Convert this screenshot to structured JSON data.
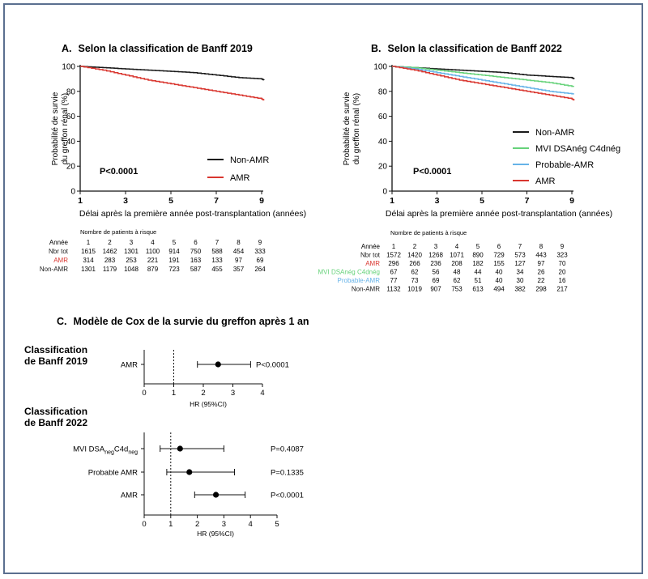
{
  "colors": {
    "black": "#1a1a1a",
    "red": "#d9362f",
    "green": "#66d27a",
    "blue": "#66b3e8",
    "frame": "#5b6f8f"
  },
  "chart_data": [
    {
      "type": "line",
      "panel": "A.",
      "title": "Selon la classification de Banff 2019",
      "ylabel": "Probabilité de survie du greffon rénal (%)",
      "ylabel_lines": [
        "Probabilité de survie",
        "du greffon rénal (%)"
      ],
      "xlabel": "Délai après la première année post-transplantation (années)",
      "xlim": [
        1,
        9
      ],
      "ylim": [
        0,
        100
      ],
      "xticks": [
        1,
        3,
        5,
        7,
        9
      ],
      "yticks": [
        0,
        20,
        40,
        60,
        80,
        100
      ],
      "pvalue": "P<0.0001",
      "legend_position": "bottom-right",
      "series": [
        {
          "name": "Non-AMR",
          "color": "#1a1a1a",
          "x": [
            1,
            2,
            3,
            4,
            5,
            6,
            7,
            8,
            9,
            9.1
          ],
          "y": [
            100,
            99,
            98,
            97,
            96,
            95,
            93,
            91,
            90,
            89
          ]
        },
        {
          "name": "AMR",
          "color": "#d9362f",
          "x": [
            1,
            2,
            3,
            4,
            5,
            6,
            7,
            8,
            9,
            9.1
          ],
          "y": [
            100,
            97,
            93,
            89,
            86,
            83,
            80,
            77,
            74,
            73
          ]
        }
      ],
      "risk_table": {
        "title": "Nombre de patients à risque",
        "header_label": "Année",
        "years": [
          "1",
          "2",
          "3",
          "4",
          "5",
          "6",
          "7",
          "8",
          "9"
        ],
        "rows": [
          {
            "label": "Nbr tot",
            "color": "#1a1a1a",
            "values": [
              "1615",
              "1462",
              "1301",
              "1100",
              "914",
              "750",
              "588",
              "454",
              "333"
            ]
          },
          {
            "label": "AMR",
            "color": "#d9362f",
            "values": [
              "314",
              "283",
              "253",
              "221",
              "191",
              "163",
              "133",
              "97",
              "69"
            ]
          },
          {
            "label": "Non-AMR",
            "color": "#1a1a1a",
            "values": [
              "1301",
              "1179",
              "1048",
              "879",
              "723",
              "587",
              "455",
              "357",
              "264"
            ]
          }
        ]
      }
    },
    {
      "type": "line",
      "panel": "B.",
      "title": "Selon la classification de Banff 2022",
      "ylabel": "Probabilité de survie du greffon rénal (%)",
      "ylabel_lines": [
        "Probabilité de survie",
        "du greffon rénal (%)"
      ],
      "xlabel": "Délai après la première année post-transplantation (années)",
      "xlim": [
        1,
        9
      ],
      "ylim": [
        0,
        100
      ],
      "xticks": [
        1,
        3,
        5,
        7,
        9
      ],
      "yticks": [
        0,
        20,
        40,
        60,
        80,
        100
      ],
      "pvalue": "P<0.0001",
      "legend_position": "right",
      "series": [
        {
          "name": "Non-AMR",
          "color": "#1a1a1a",
          "x": [
            1,
            2,
            3,
            4,
            5,
            6,
            7,
            8,
            9,
            9.1
          ],
          "y": [
            100,
            99,
            98,
            97,
            96,
            95,
            93,
            92,
            91,
            90
          ]
        },
        {
          "name": "MVI DSAnég C4dnég",
          "color": "#66d27a",
          "x": [
            1,
            2,
            3,
            4,
            5,
            6,
            7,
            8,
            9,
            9.1
          ],
          "y": [
            100,
            99,
            97,
            95,
            93,
            91,
            89,
            87,
            84,
            84
          ]
        },
        {
          "name": "Probable-AMR",
          "color": "#66b3e8",
          "x": [
            1,
            2,
            3,
            4,
            5,
            6,
            7,
            8,
            9,
            9.1
          ],
          "y": [
            100,
            98,
            95,
            92,
            89,
            86,
            83,
            80,
            78,
            78
          ]
        },
        {
          "name": "AMR",
          "color": "#d9362f",
          "x": [
            1,
            2,
            3,
            4,
            5,
            6,
            7,
            8,
            9,
            9.1
          ],
          "y": [
            100,
            97,
            93,
            89,
            86,
            83,
            80,
            77,
            74,
            73
          ]
        }
      ],
      "risk_table": {
        "title": "Nombre de patients à risque",
        "header_label": "Année",
        "years": [
          "1",
          "2",
          "3",
          "4",
          "5",
          "6",
          "7",
          "8",
          "9"
        ],
        "rows": [
          {
            "label": "Nbr tot",
            "color": "#1a1a1a",
            "values": [
              "1572",
              "1420",
              "1268",
              "1071",
              "890",
              "729",
              "573",
              "443",
              "323"
            ]
          },
          {
            "label": "AMR",
            "color": "#d9362f",
            "values": [
              "296",
              "266",
              "236",
              "208",
              "182",
              "155",
              "127",
              "97",
              "70"
            ]
          },
          {
            "label": "MVI DSAnég C4dnég",
            "color": "#66d27a",
            "values": [
              "67",
              "62",
              "56",
              "48",
              "44",
              "40",
              "34",
              "26",
              "20"
            ]
          },
          {
            "label": "Probable-AMR",
            "color": "#66b3e8",
            "values": [
              "77",
              "73",
              "69",
              "62",
              "51",
              "40",
              "30",
              "22",
              "16"
            ]
          },
          {
            "label": "Non-AMR",
            "color": "#1a1a1a",
            "values": [
              "1132",
              "1019",
              "907",
              "753",
              "613",
              "494",
              "382",
              "298",
              "217"
            ]
          }
        ]
      }
    },
    {
      "type": "forest",
      "panel": "C.",
      "title": "Modèle de Cox de la survie du greffon après 1 an",
      "groups": [
        {
          "heading": [
            "Classification",
            "de Banff 2019"
          ],
          "xlabel": "HR (95%CI)",
          "xlim": [
            0,
            4
          ],
          "xticks": [
            0,
            1,
            2,
            3,
            4
          ],
          "reference": 1,
          "rows": [
            {
              "label": "AMR",
              "hr": 2.5,
              "lo": 1.8,
              "hi": 3.6,
              "p": "P<0.0001"
            }
          ]
        },
        {
          "heading": [
            "Classification",
            "de Banff 2022"
          ],
          "xlabel": "HR (95%CI)",
          "xlim": [
            0,
            5
          ],
          "xticks": [
            0,
            1,
            2,
            3,
            4,
            5
          ],
          "reference": 1,
          "rows": [
            {
              "label_main": "MVI DSA",
              "label_sub1": "neg",
              "label_mid": "C4d",
              "label_sub2": "neg",
              "hr": 1.35,
              "lo": 0.6,
              "hi": 3.0,
              "p": "P=0.4087"
            },
            {
              "label": "Probable AMR",
              "hr": 1.7,
              "lo": 0.85,
              "hi": 3.4,
              "p": "P=0.1335"
            },
            {
              "label": "AMR",
              "hr": 2.7,
              "lo": 1.9,
              "hi": 3.8,
              "p": "P<0.0001"
            }
          ]
        }
      ]
    }
  ]
}
